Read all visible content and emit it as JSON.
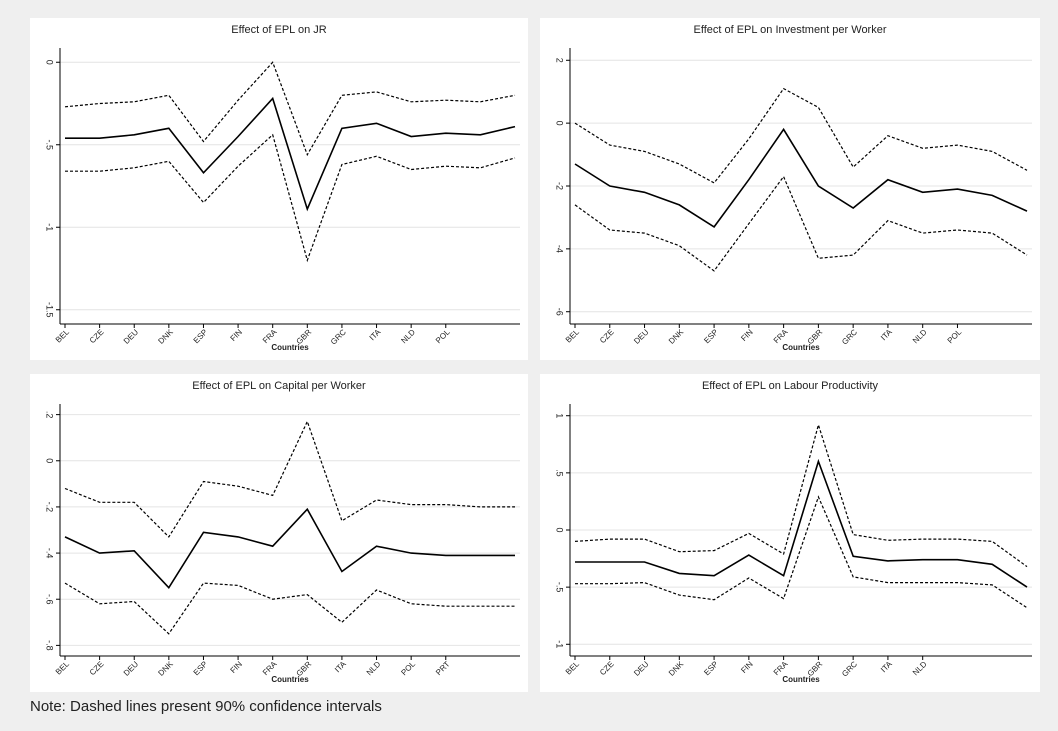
{
  "chart_data": [
    {
      "type": "line",
      "title": "Effect of EPL on JR",
      "xlabel": "Countries",
      "categories": [
        "BEL",
        "CZE",
        "DEU",
        "DNK",
        "ESP",
        "FIN",
        "FRA",
        "GBR",
        "GRC",
        "ITA",
        "NLD",
        "POL",
        null,
        null
      ],
      "series": [
        {
          "color": "#000000",
          "dashed": false,
          "values": [
            -0.46,
            -0.46,
            -0.44,
            -0.4,
            -0.67,
            -0.45,
            -0.22,
            -0.89,
            -0.4,
            -0.37,
            -0.45,
            -0.43,
            -0.44,
            -0.39
          ]
        },
        {
          "color": "#000000",
          "dashed": true,
          "values": [
            -0.27,
            -0.25,
            -0.24,
            -0.2,
            -0.48,
            -0.23,
            0.0,
            -0.56,
            -0.2,
            -0.18,
            -0.24,
            -0.23,
            -0.24,
            -0.2
          ]
        },
        {
          "color": "#000000",
          "dashed": true,
          "values": [
            -0.66,
            -0.66,
            -0.64,
            -0.6,
            -0.85,
            -0.63,
            -0.44,
            -1.2,
            -0.62,
            -0.57,
            -0.65,
            -0.63,
            -0.64,
            -0.58
          ]
        }
      ],
      "ylim": [
        -1.55,
        0.05
      ],
      "yticks": [
        0,
        {
          "value": -0.5,
          "label": "-.5"
        },
        -1,
        -1.5
      ],
      "grid": true
    },
    {
      "type": "line",
      "title": "Effect of EPL on Investment per Worker",
      "xlabel": "Countries",
      "categories": [
        "BEL",
        "CZE",
        "DEU",
        "DNK",
        "ESP",
        "FIN",
        "FRA",
        "GBR",
        "GRC",
        "ITA",
        "NLD",
        "POL",
        null,
        null
      ],
      "series": [
        {
          "color": "#000000",
          "dashed": false,
          "values": [
            -1.3,
            -2.0,
            -2.2,
            -2.6,
            -3.3,
            -1.8,
            -0.2,
            -2.0,
            -2.7,
            -1.8,
            -2.2,
            -2.1,
            -2.3,
            -2.8
          ]
        },
        {
          "color": "#000000",
          "dashed": true,
          "values": [
            0,
            -0.7,
            -0.9,
            -1.3,
            -1.9,
            -0.5,
            1.1,
            0.5,
            -1.4,
            -0.4,
            -0.8,
            -0.7,
            -0.9,
            -1.5
          ]
        },
        {
          "color": "#000000",
          "dashed": true,
          "values": [
            -2.6,
            -3.4,
            -3.5,
            -3.9,
            -4.7,
            -3.2,
            -1.7,
            -4.3,
            -4.2,
            -3.1,
            -3.5,
            -3.4,
            -3.5,
            -4.2
          ]
        }
      ],
      "ylim": [
        -6.2,
        2.2
      ],
      "yticks": [
        2,
        0,
        -2,
        -4,
        -6
      ],
      "grid": true
    },
    {
      "type": "line",
      "title": "Effect of EPL on Capital per Worker",
      "xlabel": "Countries",
      "categories": [
        "BEL",
        "CZE",
        "DEU",
        "DNK",
        "ESP",
        "FIN",
        "FRA",
        "GBR",
        "ITA",
        "NLD",
        "POL",
        "PRT",
        null,
        null
      ],
      "series": [
        {
          "color": "#000000",
          "dashed": false,
          "values": [
            -0.33,
            -0.4,
            -0.39,
            -0.55,
            -0.31,
            -0.33,
            -0.37,
            -0.21,
            -0.48,
            -0.37,
            -0.4,
            -0.41,
            -0.41,
            -0.41
          ]
        },
        {
          "color": "#000000",
          "dashed": true,
          "values": [
            -0.12,
            -0.18,
            -0.18,
            -0.33,
            -0.09,
            -0.11,
            -0.15,
            0.17,
            -0.26,
            -0.17,
            -0.19,
            -0.19,
            -0.2,
            -0.2
          ]
        },
        {
          "color": "#000000",
          "dashed": true,
          "values": [
            -0.53,
            -0.62,
            -0.61,
            -0.75,
            -0.53,
            -0.54,
            -0.6,
            -0.58,
            -0.7,
            -0.56,
            -0.62,
            -0.63,
            -0.63,
            -0.63
          ]
        }
      ],
      "ylim": [
        -0.82,
        0.22
      ],
      "yticks": [
        {
          "value": 0.2,
          "label": ".2"
        },
        0,
        {
          "value": -0.2,
          "label": "-.2"
        },
        {
          "value": -0.4,
          "label": "-.4"
        },
        {
          "value": -0.6,
          "label": "-.6"
        },
        {
          "value": -0.8,
          "label": "-.8"
        }
      ],
      "grid": true
    },
    {
      "type": "line",
      "title": "Effect of EPL on Labour Productivity",
      "xlabel": "Countries",
      "categories": [
        "BEL",
        "CZE",
        "DEU",
        "DNK",
        "ESP",
        "FIN",
        "FRA",
        "GBR",
        "GRC",
        "ITA",
        "NLD",
        null,
        null,
        null
      ],
      "series": [
        {
          "color": "#000000",
          "dashed": false,
          "values": [
            -0.28,
            -0.28,
            -0.28,
            -0.38,
            -0.4,
            -0.22,
            -0.4,
            0.6,
            -0.23,
            -0.27,
            -0.26,
            -0.26,
            -0.3,
            -0.5
          ]
        },
        {
          "color": "#000000",
          "dashed": true,
          "values": [
            -0.1,
            -0.08,
            -0.08,
            -0.19,
            -0.18,
            -0.03,
            -0.21,
            0.92,
            -0.04,
            -0.09,
            -0.08,
            -0.08,
            -0.1,
            -0.32
          ]
        },
        {
          "color": "#000000",
          "dashed": true,
          "values": [
            -0.47,
            -0.47,
            -0.46,
            -0.57,
            -0.61,
            -0.42,
            -0.6,
            0.29,
            -0.41,
            -0.46,
            -0.46,
            -0.46,
            -0.48,
            -0.68
          ]
        }
      ],
      "ylim": [
        -1.05,
        1.05
      ],
      "yticks": [
        1,
        {
          "value": 0.5,
          "label": ".5"
        },
        0,
        {
          "value": -0.5,
          "label": "-.5"
        },
        -1
      ],
      "grid": true
    }
  ],
  "note": "Note: Dashed lines present 90% confidence intervals"
}
